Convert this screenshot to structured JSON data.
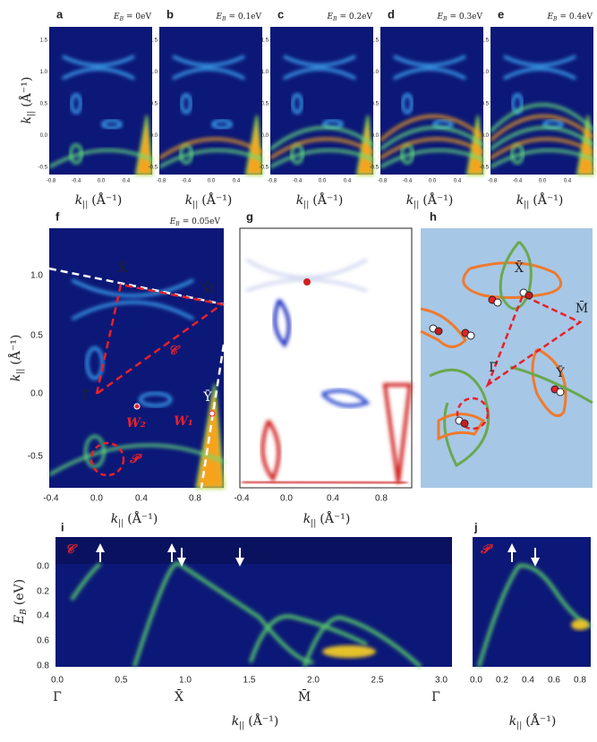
{
  "figure": {
    "energy_symbol": "E",
    "energy_subscript": "B",
    "k_symbol": "k",
    "k_subscript": "||",
    "k_unit": "(Å⁻¹)",
    "top_panels": [
      {
        "label": "a",
        "energy": "= 0eV"
      },
      {
        "label": "b",
        "energy": "= 0.1eV"
      },
      {
        "label": "c",
        "energy": "= 0.2eV"
      },
      {
        "label": "d",
        "energy": "= 0.3eV"
      },
      {
        "label": "e",
        "energy": "= 0.4eV"
      }
    ],
    "top_yticks": [
      "1.5",
      "1.0",
      "0.5",
      "0.0",
      "-0.5"
    ],
    "top_xticks": [
      "-0.8",
      "-0.4",
      "0.0",
      "0.4"
    ],
    "panel_f": {
      "label": "f",
      "energy": "= 0.05eV",
      "yticks": [
        "1.0",
        "0.5",
        "0.0",
        "-0.5"
      ],
      "xticks": [
        "-0.4",
        "0.0",
        "0.4",
        "0.8"
      ],
      "points": [
        "X̄",
        "M̄",
        "Γ̄",
        "Ȳ"
      ],
      "paths": [
        "𝒞",
        "𝒫"
      ],
      "weyl": [
        "W₂",
        "W₁"
      ]
    },
    "panel_g": {
      "label": "g",
      "xticks": [
        "-0.4",
        "0.0",
        "0.4",
        "0.8"
      ]
    },
    "panel_h": {
      "label": "h",
      "points": [
        "X̄",
        "M̄",
        "Γ̄",
        "Ȳ"
      ]
    },
    "panel_i": {
      "label": "i",
      "path": "𝒞",
      "y_unit": "(eV)",
      "yticks": [
        "0.0",
        "0.2",
        "0.4",
        "0.6",
        "0.8"
      ],
      "xticks": [
        "0.0",
        "0.5",
        "1.0",
        "1.5",
        "2.0",
        "2.5",
        "3.0"
      ],
      "points": [
        "Γ̄",
        "X̄",
        "M̄",
        "Γ̄"
      ]
    },
    "panel_j": {
      "label": "j",
      "path": "𝒫",
      "xticks": [
        "0.0",
        "0.2",
        "0.4",
        "0.6",
        "0.8"
      ]
    }
  }
}
